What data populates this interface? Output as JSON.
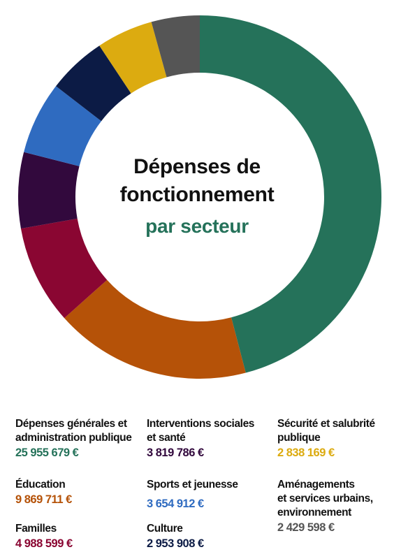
{
  "title": {
    "line1": "Dépenses de",
    "line2": "fonctionnement",
    "line3": "par secteur",
    "accent_color": "#25725a"
  },
  "chart_data": {
    "type": "pie",
    "variant": "donut",
    "legend_position": "bottom",
    "series": [
      {
        "label": [
          "Dépenses générales et",
          "administration publique"
        ],
        "value_text": "25 955 679 €",
        "value": 25955679,
        "color": "#25725a"
      },
      {
        "label": [
          "Éducation"
        ],
        "value_text": "9 869 711 €",
        "value": 9869711,
        "color": "#b55208"
      },
      {
        "label": [
          "Familles"
        ],
        "value_text": "4 988 599 €",
        "value": 4988599,
        "color": "#8a0632"
      },
      {
        "label": [
          "Interventions sociales",
          "et santé"
        ],
        "value_text": "3 819 786 €",
        "value": 3819786,
        "color": "#32093d"
      },
      {
        "label": [
          "Sports et jeunesse"
        ],
        "value_text": "3 654 912 €",
        "value": 3654912,
        "color": "#2f6bc0"
      },
      {
        "label": [
          "Culture"
        ],
        "value_text": "2 953 908 €",
        "value": 2953908,
        "color": "#0c1b45"
      },
      {
        "label": [
          "Sécurité et salubrité",
          "publique"
        ],
        "value_text": "2 838 169 €",
        "value": 2838169,
        "color": "#dcab10"
      },
      {
        "label": [
          "Aménagements",
          "et services urbains,",
          "environnement"
        ],
        "value_text": "2 429 598 €",
        "value": 2429598,
        "color": "#555555"
      }
    ]
  }
}
